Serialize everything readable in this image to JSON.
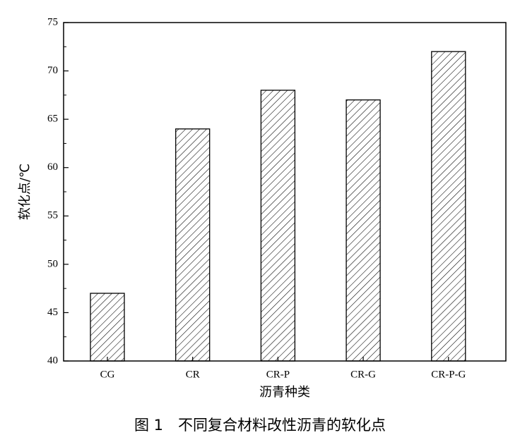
{
  "chart_data": {
    "type": "bar",
    "y_label": "软化点/℃",
    "x_label": "沥青种类",
    "caption": "图 1　不同复合材料改性沥青的软化点",
    "categories": [
      "CG",
      "CR",
      "CR-P",
      "CR-G",
      "CR-P-G"
    ],
    "values": [
      47,
      64,
      68,
      67,
      72
    ],
    "color": "#000000",
    "ylim": [
      40,
      75
    ],
    "yticks": [
      40,
      45,
      50,
      55,
      60,
      65,
      70,
      75
    ],
    "yminorticks": [
      42.5,
      47.5,
      52.5,
      57.5,
      62.5,
      67.5,
      72.5
    ]
  }
}
